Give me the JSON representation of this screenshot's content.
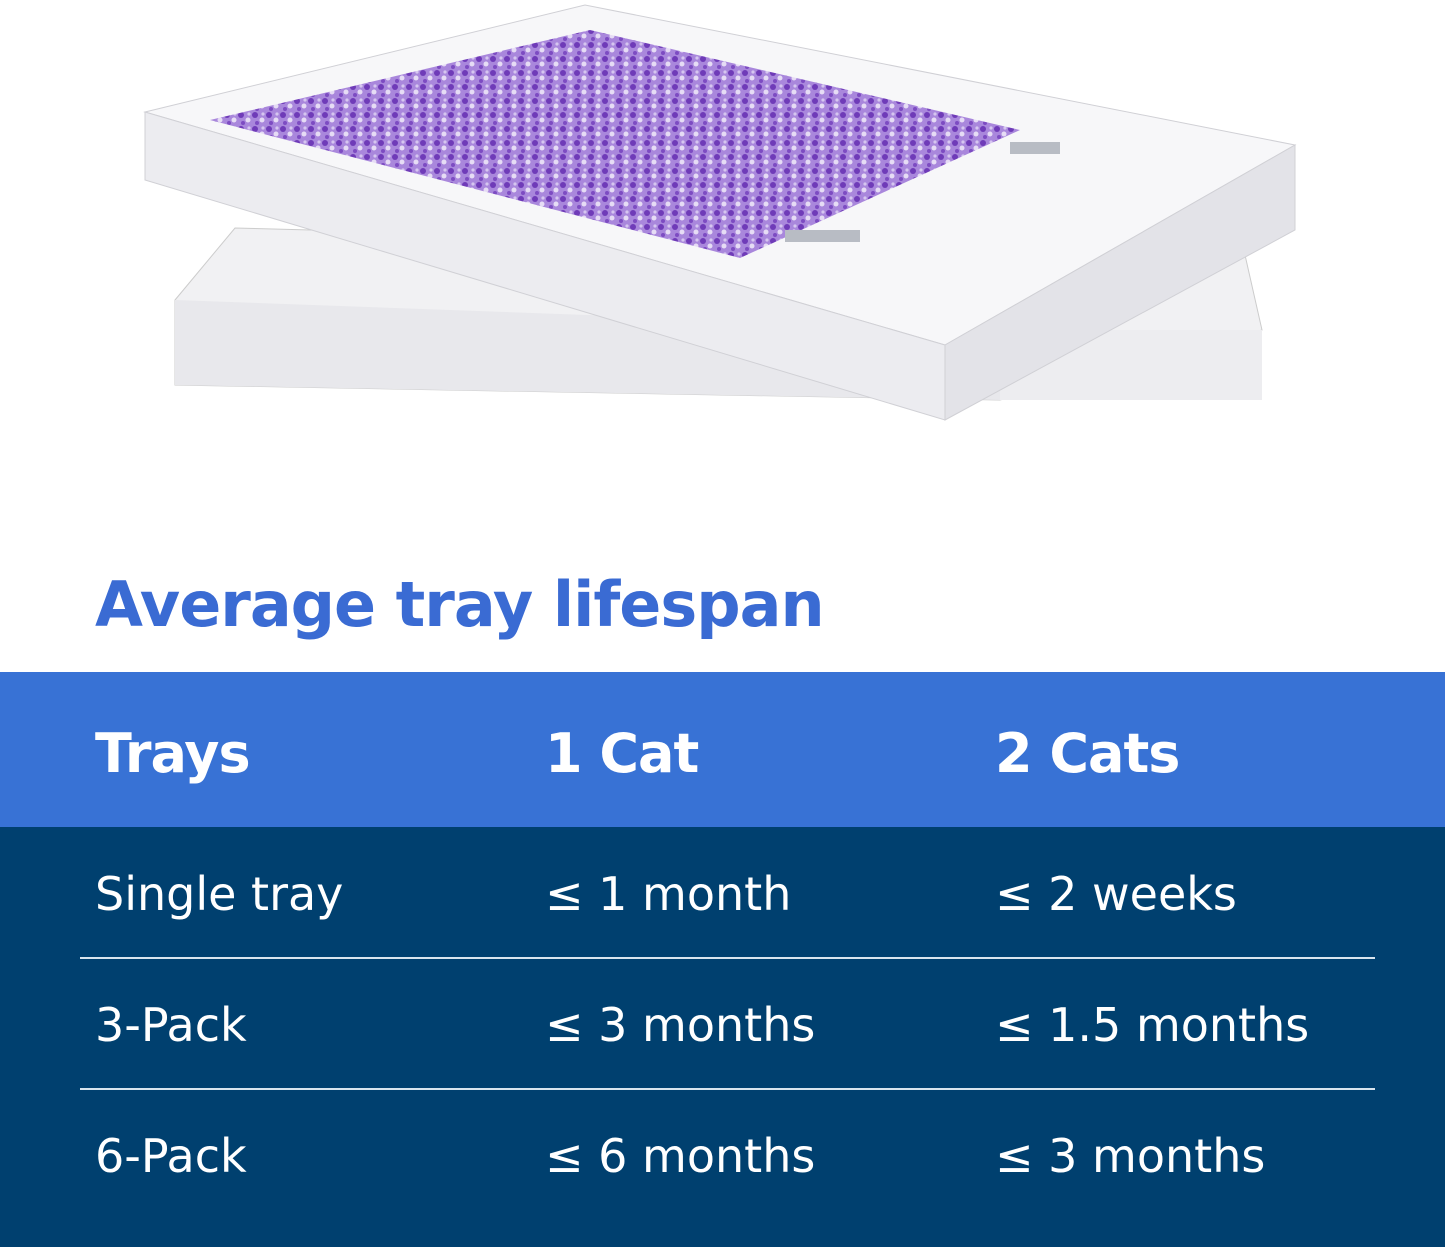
{
  "title": "Average tray lifespan",
  "colors": {
    "title": "#3a6bd3",
    "header_bg": "#3872d5",
    "body_bg": "#00406f",
    "litter": "#8a5cc8"
  },
  "table": {
    "headers": [
      "Trays",
      "1 Cat",
      "2 Cats"
    ],
    "rows": [
      [
        "Single tray",
        "≤ 1 month",
        "≤ 2 weeks"
      ],
      [
        "3-Pack",
        "≤ 3 months",
        "≤ 1.5 months"
      ],
      [
        "6-Pack",
        "≤ 6 months",
        "≤ 3 months"
      ]
    ]
  }
}
